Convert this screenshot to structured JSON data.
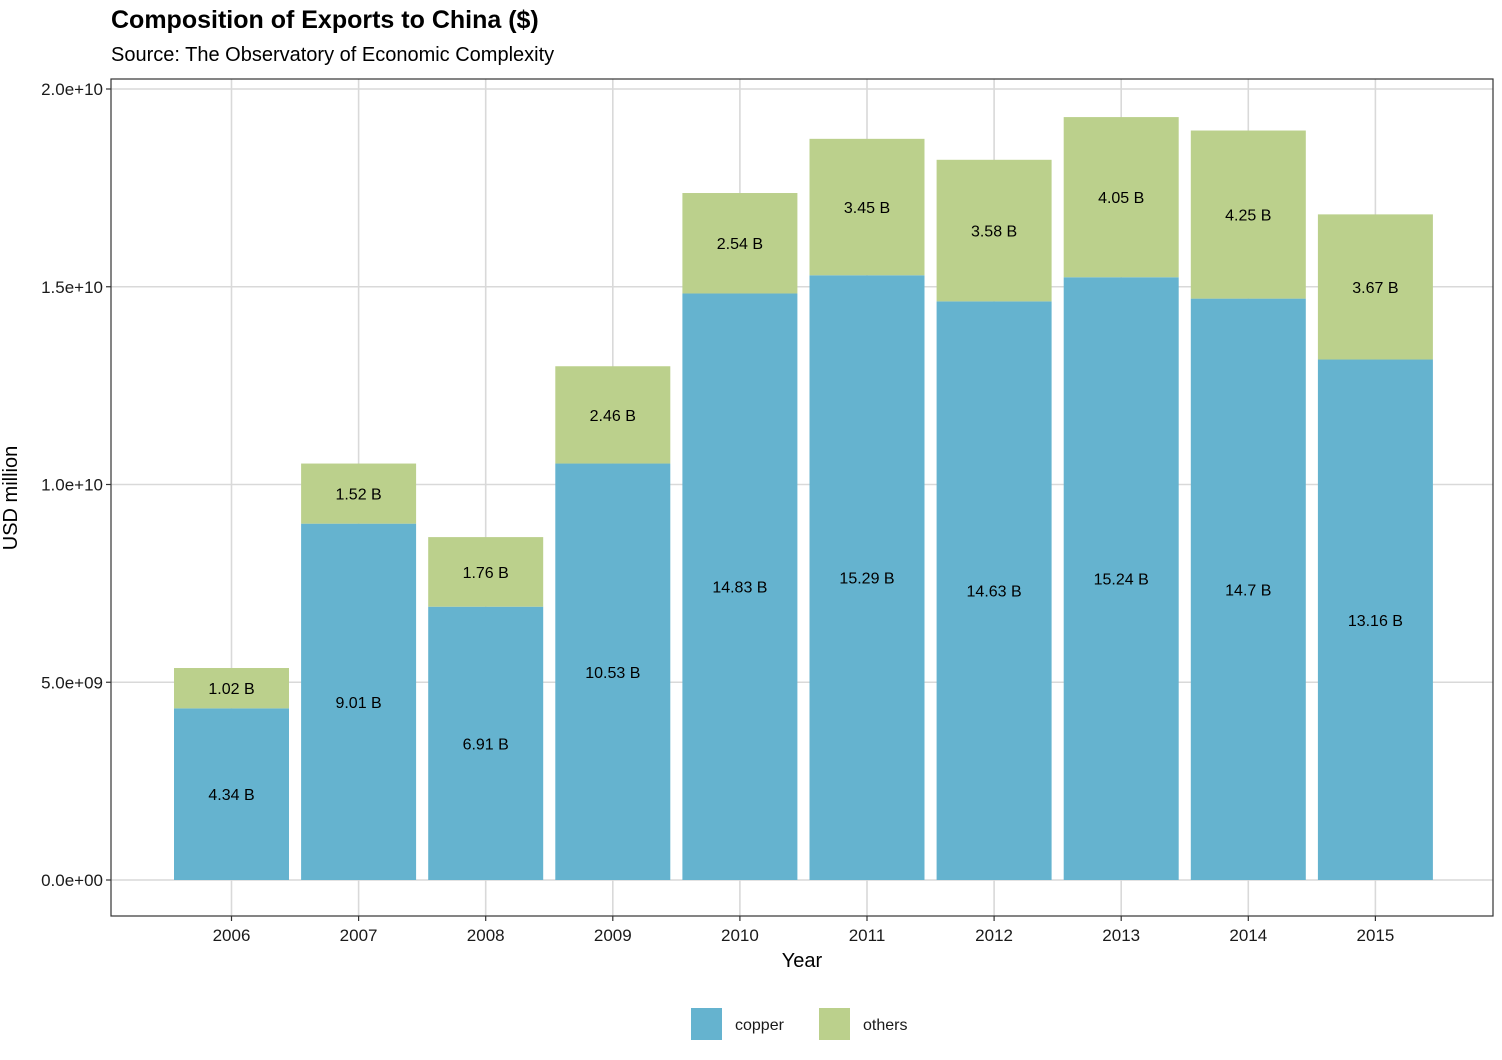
{
  "chart_data": {
    "type": "bar",
    "stacked": true,
    "title": "Composition of Exports to China ($)",
    "subtitle": "Source: The Observatory of Economic Complexity",
    "xlabel": "Year",
    "ylabel": "USD million",
    "categories": [
      "2006",
      "2007",
      "2008",
      "2009",
      "2010",
      "2011",
      "2012",
      "2013",
      "2014",
      "2015"
    ],
    "ylim": [
      0,
      20000000000
    ],
    "yticks": [
      {
        "value": 0,
        "label": "0.0e+00"
      },
      {
        "value": 5000000000,
        "label": "5.0e+09"
      },
      {
        "value": 10000000000,
        "label": "1.0e+10"
      },
      {
        "value": 15000000000,
        "label": "1.5e+10"
      },
      {
        "value": 20000000000,
        "label": "2.0e+10"
      }
    ],
    "series": [
      {
        "name": "copper",
        "color": "#65b3cf",
        "values": [
          4340000000,
          9010000000,
          6910000000,
          10530000000,
          14830000000,
          15290000000,
          14630000000,
          15240000000,
          14700000000,
          13160000000
        ],
        "labels": [
          "4.34 B",
          "9.01 B",
          "6.91 B",
          "10.53 B",
          "14.83 B",
          "15.29 B",
          "14.63 B",
          "15.24 B",
          "14.7 B",
          "13.16 B"
        ]
      },
      {
        "name": "others",
        "color": "#bbd08c",
        "values": [
          1020000000,
          1520000000,
          1760000000,
          2460000000,
          2540000000,
          3450000000,
          3580000000,
          4050000000,
          4250000000,
          3670000000
        ],
        "labels": [
          "1.02 B",
          "1.52 B",
          "1.76 B",
          "2.46 B",
          "2.54 B",
          "3.45 B",
          "3.58 B",
          "4.05 B",
          "4.25 B",
          "3.67 B"
        ]
      }
    ],
    "grid": true,
    "legend_position": "bottom"
  }
}
